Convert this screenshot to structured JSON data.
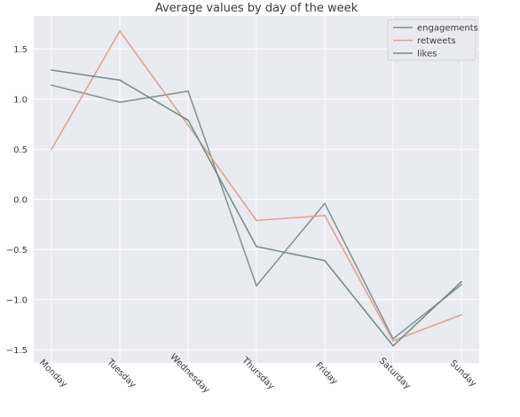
{
  "chart_data": {
    "type": "line",
    "title": "Average values by day of the week",
    "xlabel": "",
    "ylabel": "",
    "categories": [
      "Monday",
      "Tuesday",
      "Wednesday",
      "Thursday",
      "Friday",
      "Saturday",
      "Sunday"
    ],
    "yticks": [
      1.5,
      1.0,
      0.5,
      0.0,
      -0.5,
      -1.0,
      -1.5
    ],
    "ytick_labels": [
      "1.5",
      "1.0",
      "0.5",
      "0.0",
      "−0.5",
      "−1.0",
      "−1.5"
    ],
    "ylim": [
      -1.63,
      1.83
    ],
    "grid": true,
    "legend_location": "top-right",
    "series": [
      {
        "name": "engagements",
        "color": "#7f9090",
        "values": [
          1.14,
          0.97,
          1.08,
          -0.86,
          -0.04,
          -1.39,
          -0.85
        ]
      },
      {
        "name": "retweets",
        "color": "#e0a086",
        "values": [
          0.5,
          1.68,
          0.74,
          -0.21,
          -0.16,
          -1.41,
          -1.15
        ]
      },
      {
        "name": "likes",
        "color": "#6e8b86",
        "values": [
          1.29,
          1.19,
          0.79,
          -0.47,
          -0.61,
          -1.46,
          -0.82
        ]
      }
    ]
  }
}
